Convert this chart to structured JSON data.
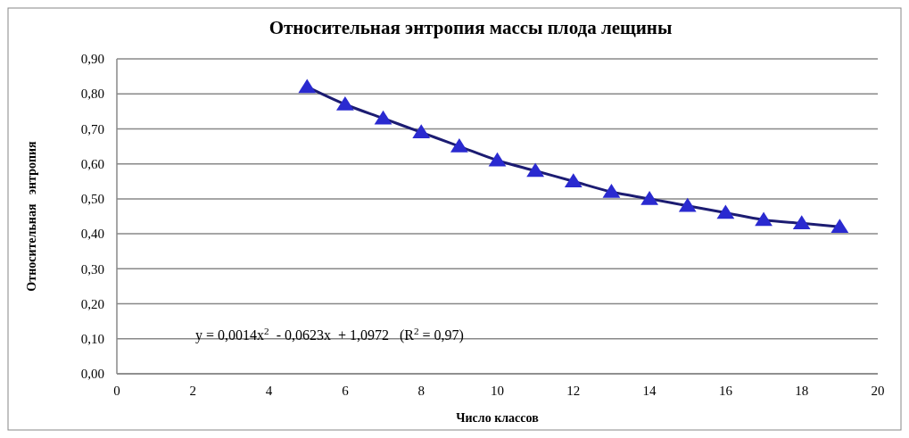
{
  "chart_data": {
    "type": "scatter",
    "title": "Относительная энтропия массы плода лещины",
    "xlabel": "Число классов",
    "ylabel": "Относительная   энтропия",
    "x": [
      5,
      6,
      7,
      8,
      9,
      10,
      11,
      12,
      13,
      14,
      15,
      16,
      17,
      18,
      19
    ],
    "series": [
      {
        "type": "line",
        "color": "#1c1c72",
        "line_style": "solid",
        "marker": "none",
        "values": [
          0.82,
          0.77,
          0.73,
          0.69,
          0.65,
          0.61,
          0.58,
          0.55,
          0.52,
          0.5,
          0.48,
          0.46,
          0.44,
          0.43,
          0.42
        ]
      },
      {
        "color": "#2a2ad0",
        "marker": "triangle",
        "values": [
          0.82,
          0.77,
          0.73,
          0.69,
          0.65,
          0.61,
          0.58,
          0.55,
          0.52,
          0.5,
          0.48,
          0.46,
          0.44,
          0.43,
          0.42
        ]
      }
    ],
    "xlim": [
      0,
      20
    ],
    "xticks": [
      0,
      2,
      4,
      6,
      8,
      10,
      12,
      14,
      16,
      18,
      20
    ],
    "ylim": [
      0,
      0.9
    ],
    "yticks": [
      {
        "value": 0,
        "label": "0,00"
      },
      {
        "value": 0.1,
        "label": "0,10"
      },
      {
        "value": 0.2,
        "label": "0,20"
      },
      {
        "value": 0.3,
        "label": "0,30"
      },
      {
        "value": 0.4,
        "label": "0,40"
      },
      {
        "value": 0.5,
        "label": "0,50"
      },
      {
        "value": 0.6,
        "label": "0,60"
      },
      {
        "value": 0.7,
        "label": "0,70"
      },
      {
        "value": 0.8,
        "label": "0,80"
      },
      {
        "value": 0.9,
        "label": "0,90"
      }
    ],
    "grid": "y",
    "annotations": [
      "y = 0,0014x$^{2}$  - 0,0623x  + 1,0972   (R$^{2}$ = 0,97)"
    ]
  }
}
